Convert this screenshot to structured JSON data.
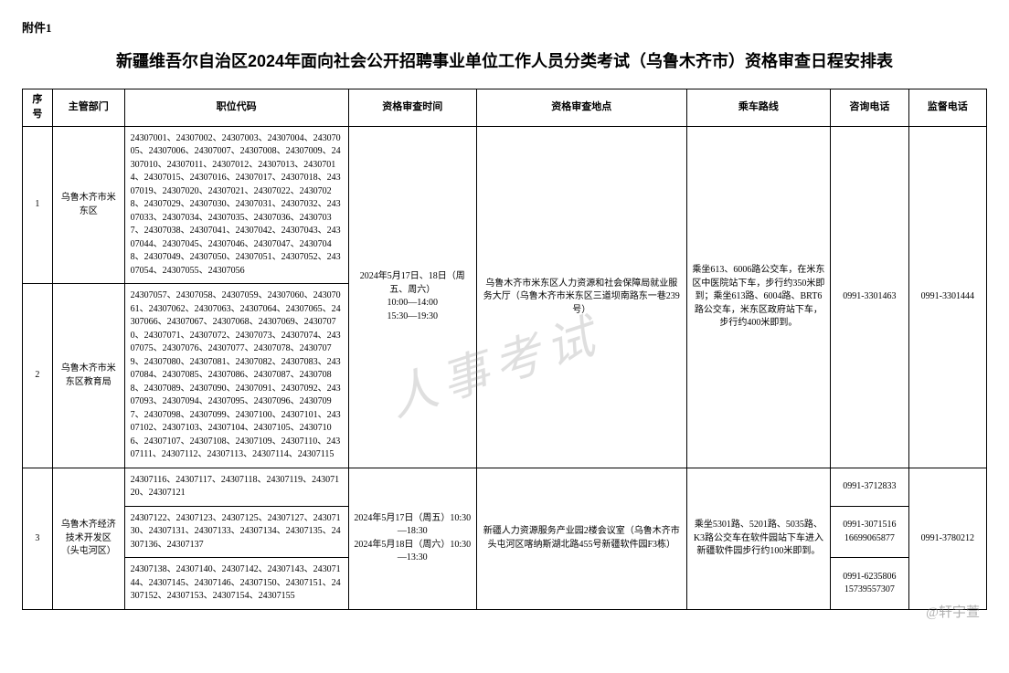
{
  "attachment_label": "附件1",
  "title": "新疆维吾尔自治区2024年面向社会公开招聘事业单位工作人员分类考试（乌鲁木齐市）资格审查日程安排表",
  "headers": {
    "seq": "序号",
    "dept": "主管部门",
    "codes": "职位代码",
    "time": "资格审查时间",
    "location": "资格审查地点",
    "bus": "乘车路线",
    "tel": "咨询电话",
    "sup": "监督电话"
  },
  "group1": {
    "row1": {
      "seq": "1",
      "dept": "乌鲁木齐市米东区",
      "codes": "24307001、24307002、24307003、24307004、24307005、24307006、24307007、24307008、24307009、24307010、24307011、24307012、24307013、24307014、24307015、24307016、24307017、24307018、24307019、24307020、24307021、24307022、24307028、24307029、24307030、24307031、24307032、24307033、24307034、24307035、24307036、24307037、24307038、24307041、24307042、24307043、24307044、24307045、24307046、24307047、24307048、24307049、24307050、24307051、24307052、24307054、24307055、24307056"
    },
    "row2": {
      "seq": "2",
      "dept": "乌鲁木齐市米东区教育局",
      "codes": "24307057、24307058、24307059、24307060、24307061、24307062、24307063、24307064、24307065、24307066、24307067、24307068、24307069、24307070、24307071、24307072、24307073、24307074、24307075、24307076、24307077、24307078、24307079、24307080、24307081、24307082、24307083、24307084、24307085、24307086、24307087、24307088、24307089、24307090、24307091、24307092、24307093、24307094、24307095、24307096、24307097、24307098、24307099、24307100、24307101、24307102、24307103、24307104、24307105、24307106、24307107、24307108、24307109、24307110、24307111、24307112、24307113、24307114、24307115"
    },
    "time": "2024年5月17日、18日（周五、周六）\n10:00—14:00\n15:30—19:30",
    "location": "乌鲁木齐市米东区人力资源和社会保障局就业服务大厅（乌鲁木齐市米东区三道坝南路东一巷239号）",
    "bus": "乘坐613、6006路公交车，在米东区中医院站下车，步行约350米即到；乘坐613路、6004路、BRT6路公交车，米东区政府站下车，步行约400米即到。",
    "tel": "0991-3301463",
    "sup": "0991-3301444"
  },
  "group2": {
    "seq": "3",
    "dept": "乌鲁木齐经济技术开发区（头屯河区）",
    "row1_codes": "24307116、24307117、24307118、24307119、24307120、24307121",
    "row2_codes": "24307122、24307123、24307125、24307127、24307130、24307131、24307133、24307134、24307135、24307136、24307137",
    "row3_codes": "24307138、24307140、24307142、24307143、24307144、24307145、24307146、24307150、24307151、24307152、24307153、24307154、24307155",
    "time": "2024年5月17日（周五）10:30—18:30\n2024年5月18日（周六）10:30—13:30",
    "location": "新疆人力资源服务产业园2楼会议室（乌鲁木齐市头屯河区喀纳斯湖北路455号新疆软件园F3栋）",
    "bus": "乘坐5301路、5201路、5035路、K3路公交车在软件园站下车进入新疆软件园步行约100米即到。",
    "tel1": "0991-3712833",
    "tel2": "0991-3071516\n16699065877",
    "tel3": "0991-6235806\n15739557307",
    "sup": "0991-3780212"
  },
  "watermark_main": "人事考试",
  "watermark_account": "@轩宇萱"
}
